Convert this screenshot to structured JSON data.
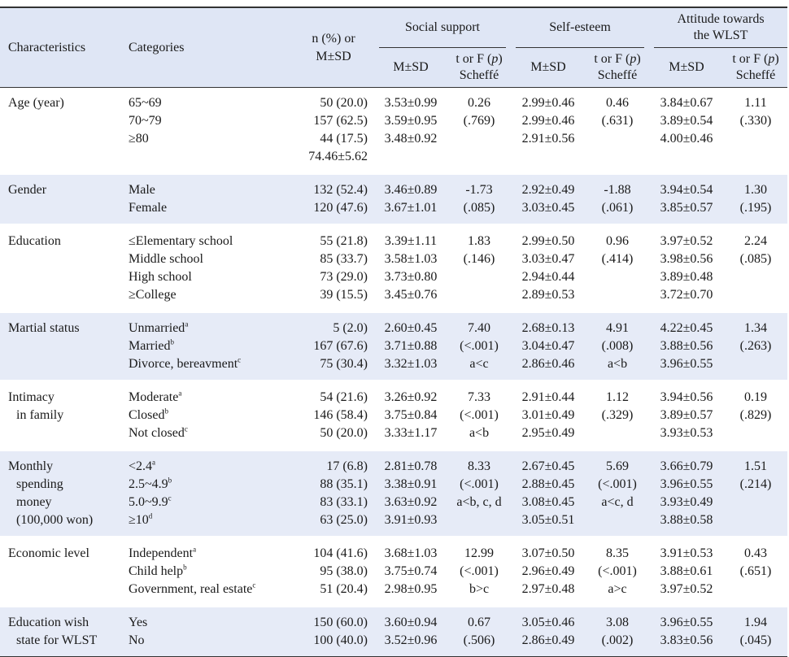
{
  "header": {
    "characteristics": "Characteristics",
    "categories": "Categories",
    "n_line1": "n (%) or",
    "n_line2": "M±SD",
    "social_support": "Social support",
    "self_esteem": "Self-esteem",
    "attitude_line1": "Attitude towards",
    "attitude_line2": "the WLST",
    "msd": "M±SD",
    "t_line1": "t or F (",
    "t_p": "p",
    "t_line1_end": ")",
    "t_line2": "Scheffé"
  },
  "rows": [
    {
      "characteristic": [
        "Age (year)"
      ],
      "categories": [
        {
          "t": "65~69",
          "s": ""
        },
        {
          "t": "70~79",
          "s": ""
        },
        {
          "t": "≥80",
          "s": ""
        }
      ],
      "n": [
        "50 (20.0)",
        "157 (62.5)",
        "44 (17.5)",
        "74.46±5.62"
      ],
      "ss_m": [
        "3.53±0.99",
        "3.59±0.95",
        "3.48±0.92"
      ],
      "ss_t": [
        "0.26",
        "(.769)"
      ],
      "se_m": [
        "2.99±0.46",
        "2.99±0.46",
        "2.91±0.56"
      ],
      "se_t": [
        "0.46",
        "(.631)"
      ],
      "at_m": [
        "3.84±0.67",
        "3.89±0.54",
        "4.00±0.46"
      ],
      "at_t": [
        "1.11",
        "(.330)"
      ]
    },
    {
      "characteristic": [
        "Gender"
      ],
      "categories": [
        {
          "t": "Male",
          "s": ""
        },
        {
          "t": "Female",
          "s": ""
        }
      ],
      "n": [
        "132 (52.4)",
        "120 (47.6)"
      ],
      "ss_m": [
        "3.46±0.89",
        "3.67±1.01"
      ],
      "ss_t": [
        "-1.73",
        "(.085)"
      ],
      "se_m": [
        "2.92±0.49",
        "3.03±0.45"
      ],
      "se_t": [
        "-1.88",
        "(.061)"
      ],
      "at_m": [
        "3.94±0.54",
        "3.85±0.57"
      ],
      "at_t": [
        "1.30",
        "(.195)"
      ]
    },
    {
      "characteristic": [
        "Education"
      ],
      "categories": [
        {
          "t": "≤Elementary school",
          "s": ""
        },
        {
          "t": "Middle school",
          "s": ""
        },
        {
          "t": "High school",
          "s": ""
        },
        {
          "t": "≥College",
          "s": ""
        }
      ],
      "n": [
        "55 (21.8)",
        "85 (33.7)",
        "73 (29.0)",
        "39 (15.5)"
      ],
      "ss_m": [
        "3.39±1.11",
        "3.58±1.03",
        "3.73±0.80",
        "3.45±0.76"
      ],
      "ss_t": [
        "1.83",
        "(.146)"
      ],
      "se_m": [
        "2.99±0.50",
        "3.03±0.47",
        "2.94±0.44",
        "2.89±0.53"
      ],
      "se_t": [
        "0.96",
        "(.414)"
      ],
      "at_m": [
        "3.97±0.52",
        "3.98±0.56",
        "3.89±0.48",
        "3.72±0.70"
      ],
      "at_t": [
        "2.24",
        "(.085)"
      ]
    },
    {
      "characteristic": [
        "Martial status"
      ],
      "categories": [
        {
          "t": "Unmarried",
          "s": "a"
        },
        {
          "t": "Married",
          "s": "b"
        },
        {
          "t": "Divorce, bereavment",
          "s": "c"
        }
      ],
      "n": [
        "5 (2.0)",
        "167 (67.6)",
        "75 (30.4)"
      ],
      "ss_m": [
        "2.60±0.45",
        "3.71±0.88",
        "3.32±1.03"
      ],
      "ss_t": [
        "7.40",
        "(<.001)",
        "a<c"
      ],
      "se_m": [
        "2.68±0.13",
        "3.04±0.47",
        "2.86±0.46"
      ],
      "se_t": [
        "4.91",
        "(.008)",
        "a<b"
      ],
      "at_m": [
        "4.22±0.45",
        "3.88±0.56",
        "3.96±0.55"
      ],
      "at_t": [
        "1.34",
        "(.263)"
      ]
    },
    {
      "characteristic": [
        "Intimacy",
        "in family"
      ],
      "categories": [
        {
          "t": "Moderate",
          "s": "a"
        },
        {
          "t": "Closed",
          "s": "b"
        },
        {
          "t": "Not closed",
          "s": "c"
        }
      ],
      "n": [
        "54 (21.6)",
        "146 (58.4)",
        "50 (20.0)"
      ],
      "ss_m": [
        "3.26±0.92",
        "3.75±0.84",
        "3.33±1.17"
      ],
      "ss_t": [
        "7.33",
        "(<.001)",
        "a<b"
      ],
      "se_m": [
        "2.91±0.44",
        "3.01±0.49",
        "2.95±0.49"
      ],
      "se_t": [
        "1.12",
        "(.329)"
      ],
      "at_m": [
        "3.94±0.56",
        "3.89±0.57",
        "3.93±0.53"
      ],
      "at_t": [
        "0.19",
        "(.829)"
      ]
    },
    {
      "characteristic": [
        "Monthly",
        "spending",
        "money",
        "(100,000 won)"
      ],
      "categories": [
        {
          "t": "<2.4",
          "s": "a"
        },
        {
          "t": "2.5~4.9",
          "s": "b"
        },
        {
          "t": "5.0~9.9",
          "s": "c"
        },
        {
          "t": "≥10",
          "s": "d"
        }
      ],
      "n": [
        "17 (6.8)",
        "88 (35.1)",
        "83 (33.1)",
        "63 (25.0)"
      ],
      "ss_m": [
        "2.81±0.78",
        "3.38±0.91",
        "3.63±0.92",
        "3.91±0.93"
      ],
      "ss_t": [
        "8.33",
        "(<.001)",
        "a<b, c, d"
      ],
      "se_m": [
        "2.67±0.45",
        "2.88±0.45",
        "3.08±0.45",
        "3.05±0.51"
      ],
      "se_t": [
        "5.69",
        "(<.001)",
        "a<c, d"
      ],
      "at_m": [
        "3.66±0.79",
        "3.96±0.55",
        "3.93±0.49",
        "3.88±0.58"
      ],
      "at_t": [
        "1.51",
        "(.214)"
      ]
    },
    {
      "characteristic": [
        "Economic level"
      ],
      "categories": [
        {
          "t": "Independent",
          "s": "a"
        },
        {
          "t": "Child help",
          "s": "b"
        },
        {
          "t": "Government, real estate",
          "s": "c"
        }
      ],
      "n": [
        "104 (41.6)",
        "95 (38.0)",
        "51 (20.4)"
      ],
      "ss_m": [
        "3.68±1.03",
        "3.75±0.74",
        "2.98±0.95"
      ],
      "ss_t": [
        "12.99",
        "(<.001)",
        "b>c"
      ],
      "se_m": [
        "3.07±0.50",
        "2.96±0.49",
        "2.97±0.48"
      ],
      "se_t": [
        "8.35",
        "(<.001)",
        "a>c"
      ],
      "at_m": [
        "3.91±0.53",
        "3.88±0.61",
        "3.97±0.52"
      ],
      "at_t": [
        "0.43",
        "(.651)"
      ]
    },
    {
      "characteristic": [
        "Education wish",
        "state for WLST"
      ],
      "categories": [
        {
          "t": "Yes",
          "s": ""
        },
        {
          "t": "No",
          "s": ""
        }
      ],
      "n": [
        "150 (60.0)",
        "100 (40.0)"
      ],
      "ss_m": [
        "3.60±0.94",
        "3.52±0.96"
      ],
      "ss_t": [
        "0.67",
        "(.506)"
      ],
      "se_m": [
        "3.05±0.46",
        "2.86±0.49"
      ],
      "se_t": [
        "3.08",
        "(.002)"
      ],
      "at_m": [
        "3.96±0.55",
        "3.83±0.56"
      ],
      "at_t": [
        "1.94",
        "(.045)"
      ]
    }
  ]
}
